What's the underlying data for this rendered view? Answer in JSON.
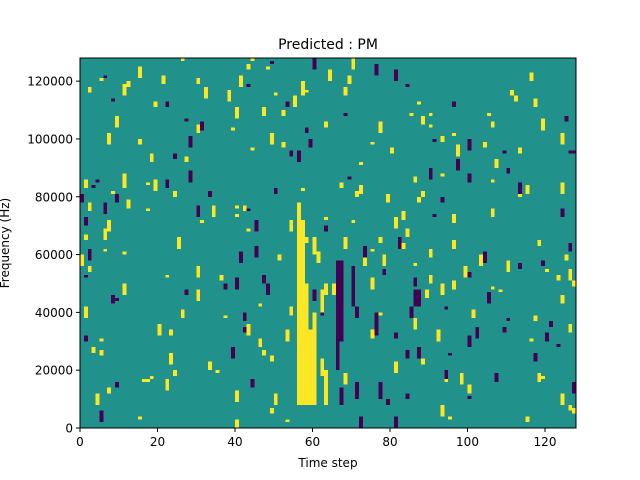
{
  "chart_data": {
    "type": "heatmap",
    "title": "Predicted : PM",
    "xlabel": "Time step",
    "ylabel": "Frequency (Hz)",
    "xlim": [
      0,
      128
    ],
    "ylim": [
      0,
      128000
    ],
    "x_ticks": [
      0,
      20,
      40,
      60,
      80,
      100,
      120
    ],
    "y_ticks": [
      0,
      20000,
      40000,
      60000,
      80000,
      100000,
      120000
    ],
    "rows": 128,
    "cols": 128,
    "row_height_hz": 1000,
    "legend": "none",
    "grid": false,
    "levels": {
      "background": 0,
      "high": 1,
      "low": -1
    },
    "colors": {
      "background": "#21918c",
      "high": "#fde725",
      "low": "#440154"
    },
    "cells": [
      {
        "t": 56,
        "f0": 8000,
        "f1": 78000,
        "v": 1
      },
      {
        "t": 57,
        "f0": 8000,
        "f1": 72000,
        "v": 1
      },
      {
        "t": 58,
        "f0": 8000,
        "f1": 46000,
        "v": 1
      },
      {
        "t": 59,
        "f0": 8000,
        "f1": 34000,
        "v": 1
      },
      {
        "t": 60,
        "f0": 8000,
        "f1": 40000,
        "v": 1
      },
      {
        "t": 57,
        "f0": 115000,
        "f1": 120000,
        "v": 1
      },
      {
        "t": 58,
        "f0": 42000,
        "f1": 50000,
        "v": 1
      },
      {
        "t": 60,
        "f0": 60000,
        "f1": 66000,
        "v": 1
      },
      {
        "t": 62,
        "f0": 18000,
        "f1": 24000,
        "v": 1
      },
      {
        "t": 62,
        "f0": 40000,
        "f1": 48000,
        "v": 1
      },
      {
        "t": 63,
        "f0": 8000,
        "f1": 20000,
        "v": 1
      },
      {
        "t": 63,
        "f0": 46000,
        "f1": 50000,
        "v": 1
      },
      {
        "t": 65,
        "f0": 46000,
        "f1": 50000,
        "v": 1
      },
      {
        "t": 66,
        "f0": 20000,
        "f1": 58000,
        "v": -1
      },
      {
        "t": 67,
        "f0": 30000,
        "f1": 58000,
        "v": -1
      },
      {
        "t": 67,
        "f0": 8000,
        "f1": 14000,
        "v": -1
      },
      {
        "t": 70,
        "f0": 42000,
        "f1": 56000,
        "v": -1
      },
      {
        "t": 71,
        "f0": 10000,
        "f1": 16000,
        "v": -1
      },
      {
        "t": 75,
        "f0": 48000,
        "f1": 52000,
        "v": 1
      },
      {
        "t": 76,
        "f0": 32000,
        "f1": 40000,
        "v": -1
      },
      {
        "t": 77,
        "f0": 10000,
        "f1": 16000,
        "v": -1
      },
      {
        "t": 78,
        "f0": 56000,
        "f1": 60000,
        "v": 1
      },
      {
        "t": 81,
        "f0": 0,
        "f1": 4000,
        "v": -1
      },
      {
        "t": 85,
        "f0": 38000,
        "f1": 42000,
        "v": -1
      },
      {
        "t": 86,
        "f0": 42000,
        "f1": 48000,
        "v": -1
      },
      {
        "t": 87,
        "f0": 42000,
        "f1": 48000,
        "v": -1
      },
      {
        "t": 87,
        "f0": 24000,
        "f1": 28000,
        "v": -1
      },
      {
        "t": 2,
        "f0": 58000,
        "f1": 62000,
        "v": -1
      },
      {
        "t": 4,
        "f0": 8000,
        "f1": 12000,
        "v": 1
      },
      {
        "t": 5,
        "f0": 2000,
        "f1": 6000,
        "v": -1
      },
      {
        "t": 9,
        "f0": 104000,
        "f1": 108000,
        "v": 1
      },
      {
        "t": 25,
        "f0": 62000,
        "f1": 66000,
        "v": 1
      },
      {
        "t": 40,
        "f0": 48000,
        "f1": 52000,
        "v": -1
      },
      {
        "t": 39,
        "f0": 24000,
        "f1": 28000,
        "v": -1
      },
      {
        "t": 90,
        "f0": 86000,
        "f1": 90000,
        "v": -1
      },
      {
        "t": 97,
        "f0": 94000,
        "f1": 98000,
        "v": 1
      },
      {
        "t": 110,
        "f0": 54000,
        "f1": 58000,
        "v": 1
      },
      {
        "t": 124,
        "f0": 8000,
        "f1": 12000,
        "v": 1
      },
      {
        "t": 127,
        "f0": 12000,
        "f1": 16000,
        "v": -1
      }
    ],
    "scatter_seed": 20240611,
    "scatter_counts": {
      "high": 190,
      "low": 95
    }
  }
}
